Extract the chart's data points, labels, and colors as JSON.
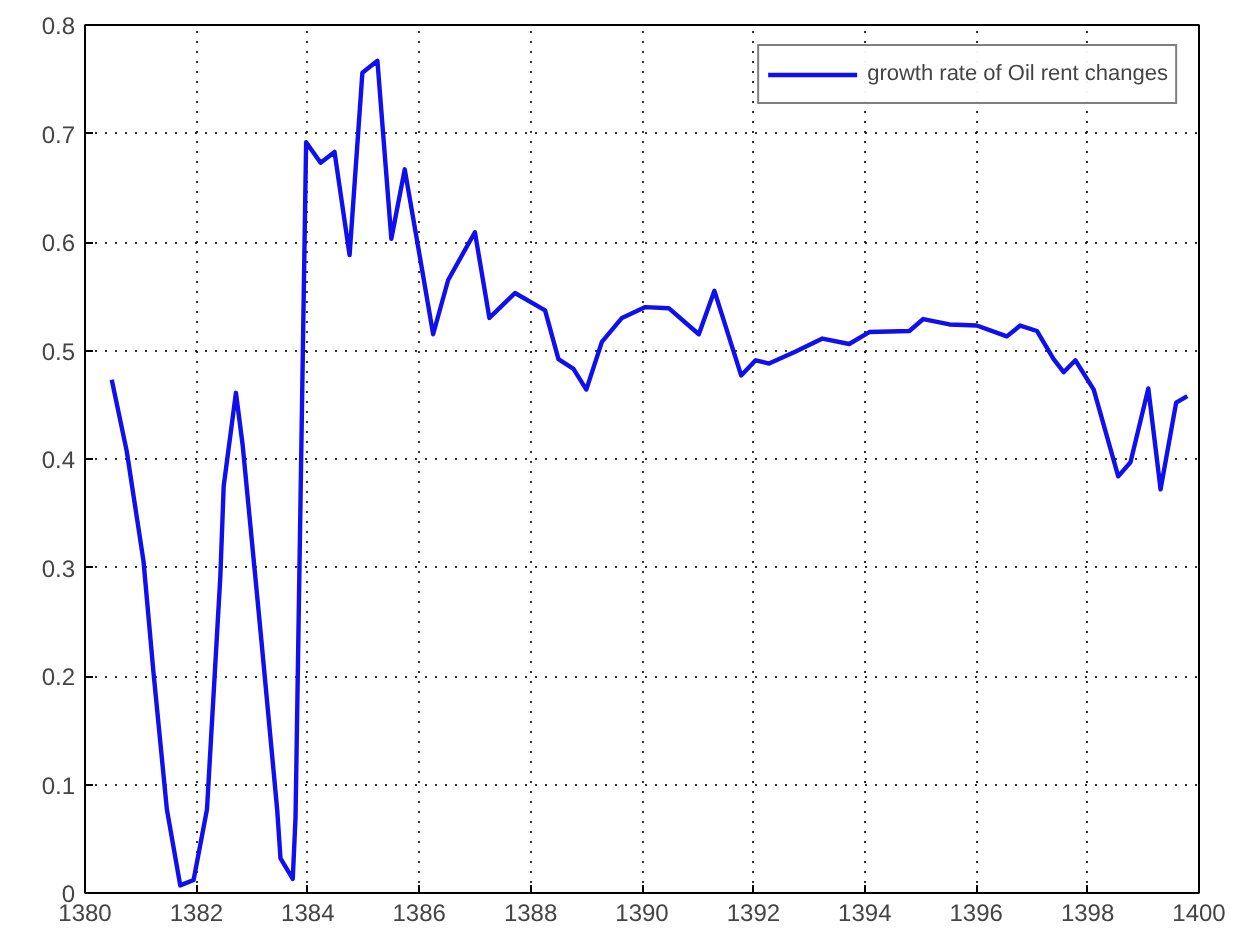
{
  "chart_data": {
    "type": "line",
    "x": [
      1380.48,
      1380.75,
      1381.05,
      1381.23,
      1381.47,
      1381.71,
      1381.95,
      1382.19,
      1382.43,
      1382.49,
      1382.71,
      1382.83,
      1383.15,
      1383.45,
      1383.51,
      1383.73,
      1383.78,
      1383.97,
      1384.23,
      1384.48,
      1384.75,
      1384.98,
      1385.25,
      1385.5,
      1385.74,
      1386.04,
      1386.25,
      1386.52,
      1387.0,
      1387.26,
      1387.72,
      1388.26,
      1388.5,
      1388.77,
      1389.0,
      1389.28,
      1389.64,
      1390.06,
      1390.48,
      1391.02,
      1391.3,
      1391.78,
      1392.04,
      1392.28,
      1392.76,
      1393.24,
      1393.72,
      1394.08,
      1394.8,
      1395.05,
      1395.52,
      1396.01,
      1396.55,
      1396.79,
      1397.09,
      1397.39,
      1397.57,
      1397.78,
      1398.11,
      1398.55,
      1398.77,
      1399.09,
      1399.31,
      1399.59,
      1399.79
    ],
    "series": [
      {
        "name": "growth rate of Oil rent changes",
        "color": "#1010ee",
        "values": [
          0.473,
          0.407,
          0.306,
          0.203,
          0.077,
          0.007,
          0.012,
          0.077,
          0.292,
          0.375,
          0.461,
          0.413,
          0.242,
          0.077,
          0.032,
          0.013,
          0.07,
          0.692,
          0.673,
          0.683,
          0.588,
          0.756,
          0.767,
          0.603,
          0.667,
          0.578,
          0.515,
          0.565,
          0.609,
          0.53,
          0.553,
          0.537,
          0.492,
          0.483,
          0.464,
          0.508,
          0.53,
          0.54,
          0.539,
          0.515,
          0.555,
          0.477,
          0.491,
          0.488,
          0.499,
          0.511,
          0.506,
          0.517,
          0.518,
          0.529,
          0.524,
          0.523,
          0.513,
          0.523,
          0.518,
          0.492,
          0.48,
          0.491,
          0.464,
          0.384,
          0.397,
          0.465,
          0.372,
          0.452,
          0.458
        ]
      }
    ],
    "xlim": [
      1380,
      1400
    ],
    "xticks": [
      1380,
      1382,
      1384,
      1386,
      1388,
      1390,
      1392,
      1394,
      1396,
      1398,
      1400
    ],
    "ylim": [
      0,
      0.8
    ],
    "yticks": [
      0,
      0.1,
      0.2,
      0.3,
      0.4,
      0.5,
      0.6,
      0.7,
      0.8
    ],
    "grid": true,
    "legend": "top right",
    "line_style": "solid",
    "marker": "none"
  }
}
